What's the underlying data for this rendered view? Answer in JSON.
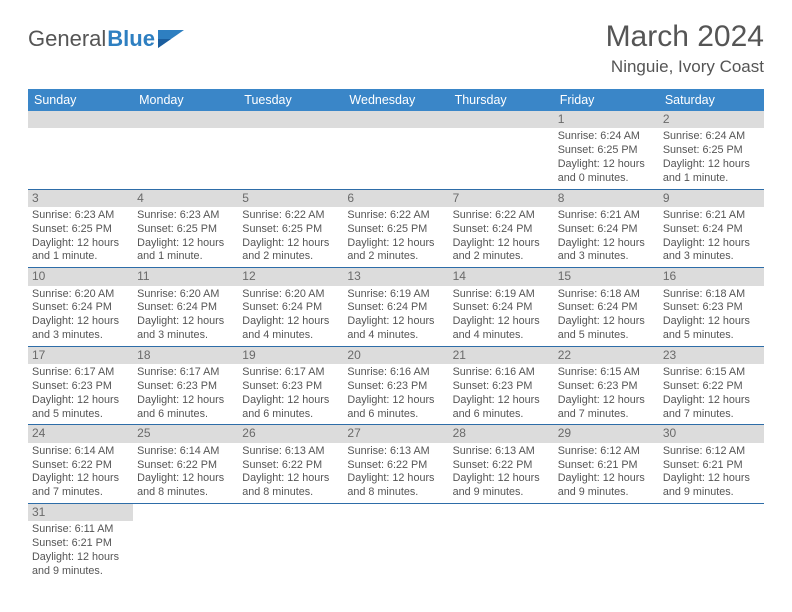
{
  "brand": {
    "part1": "General",
    "part2": "Blue"
  },
  "title": "March 2024",
  "location": "Ninguie, Ivory Coast",
  "colors": {
    "header_bg": "#3a86c8",
    "row_divider": "#2e6da8",
    "daynum_bg": "#dcdcdc",
    "text": "#555555",
    "brand_blue": "#2e7fc1"
  },
  "day_headers": [
    "Sunday",
    "Monday",
    "Tuesday",
    "Wednesday",
    "Thursday",
    "Friday",
    "Saturday"
  ],
  "weeks": [
    [
      {
        "n": "",
        "lines": []
      },
      {
        "n": "",
        "lines": []
      },
      {
        "n": "",
        "lines": []
      },
      {
        "n": "",
        "lines": []
      },
      {
        "n": "",
        "lines": []
      },
      {
        "n": "1",
        "lines": [
          "Sunrise: 6:24 AM",
          "Sunset: 6:25 PM",
          "Daylight: 12 hours and 0 minutes."
        ]
      },
      {
        "n": "2",
        "lines": [
          "Sunrise: 6:24 AM",
          "Sunset: 6:25 PM",
          "Daylight: 12 hours and 1 minute."
        ]
      }
    ],
    [
      {
        "n": "3",
        "lines": [
          "Sunrise: 6:23 AM",
          "Sunset: 6:25 PM",
          "Daylight: 12 hours and 1 minute."
        ]
      },
      {
        "n": "4",
        "lines": [
          "Sunrise: 6:23 AM",
          "Sunset: 6:25 PM",
          "Daylight: 12 hours and 1 minute."
        ]
      },
      {
        "n": "5",
        "lines": [
          "Sunrise: 6:22 AM",
          "Sunset: 6:25 PM",
          "Daylight: 12 hours and 2 minutes."
        ]
      },
      {
        "n": "6",
        "lines": [
          "Sunrise: 6:22 AM",
          "Sunset: 6:25 PM",
          "Daylight: 12 hours and 2 minutes."
        ]
      },
      {
        "n": "7",
        "lines": [
          "Sunrise: 6:22 AM",
          "Sunset: 6:24 PM",
          "Daylight: 12 hours and 2 minutes."
        ]
      },
      {
        "n": "8",
        "lines": [
          "Sunrise: 6:21 AM",
          "Sunset: 6:24 PM",
          "Daylight: 12 hours and 3 minutes."
        ]
      },
      {
        "n": "9",
        "lines": [
          "Sunrise: 6:21 AM",
          "Sunset: 6:24 PM",
          "Daylight: 12 hours and 3 minutes."
        ]
      }
    ],
    [
      {
        "n": "10",
        "lines": [
          "Sunrise: 6:20 AM",
          "Sunset: 6:24 PM",
          "Daylight: 12 hours and 3 minutes."
        ]
      },
      {
        "n": "11",
        "lines": [
          "Sunrise: 6:20 AM",
          "Sunset: 6:24 PM",
          "Daylight: 12 hours and 3 minutes."
        ]
      },
      {
        "n": "12",
        "lines": [
          "Sunrise: 6:20 AM",
          "Sunset: 6:24 PM",
          "Daylight: 12 hours and 4 minutes."
        ]
      },
      {
        "n": "13",
        "lines": [
          "Sunrise: 6:19 AM",
          "Sunset: 6:24 PM",
          "Daylight: 12 hours and 4 minutes."
        ]
      },
      {
        "n": "14",
        "lines": [
          "Sunrise: 6:19 AM",
          "Sunset: 6:24 PM",
          "Daylight: 12 hours and 4 minutes."
        ]
      },
      {
        "n": "15",
        "lines": [
          "Sunrise: 6:18 AM",
          "Sunset: 6:24 PM",
          "Daylight: 12 hours and 5 minutes."
        ]
      },
      {
        "n": "16",
        "lines": [
          "Sunrise: 6:18 AM",
          "Sunset: 6:23 PM",
          "Daylight: 12 hours and 5 minutes."
        ]
      }
    ],
    [
      {
        "n": "17",
        "lines": [
          "Sunrise: 6:17 AM",
          "Sunset: 6:23 PM",
          "Daylight: 12 hours and 5 minutes."
        ]
      },
      {
        "n": "18",
        "lines": [
          "Sunrise: 6:17 AM",
          "Sunset: 6:23 PM",
          "Daylight: 12 hours and 6 minutes."
        ]
      },
      {
        "n": "19",
        "lines": [
          "Sunrise: 6:17 AM",
          "Sunset: 6:23 PM",
          "Daylight: 12 hours and 6 minutes."
        ]
      },
      {
        "n": "20",
        "lines": [
          "Sunrise: 6:16 AM",
          "Sunset: 6:23 PM",
          "Daylight: 12 hours and 6 minutes."
        ]
      },
      {
        "n": "21",
        "lines": [
          "Sunrise: 6:16 AM",
          "Sunset: 6:23 PM",
          "Daylight: 12 hours and 6 minutes."
        ]
      },
      {
        "n": "22",
        "lines": [
          "Sunrise: 6:15 AM",
          "Sunset: 6:23 PM",
          "Daylight: 12 hours and 7 minutes."
        ]
      },
      {
        "n": "23",
        "lines": [
          "Sunrise: 6:15 AM",
          "Sunset: 6:22 PM",
          "Daylight: 12 hours and 7 minutes."
        ]
      }
    ],
    [
      {
        "n": "24",
        "lines": [
          "Sunrise: 6:14 AM",
          "Sunset: 6:22 PM",
          "Daylight: 12 hours and 7 minutes."
        ]
      },
      {
        "n": "25",
        "lines": [
          "Sunrise: 6:14 AM",
          "Sunset: 6:22 PM",
          "Daylight: 12 hours and 8 minutes."
        ]
      },
      {
        "n": "26",
        "lines": [
          "Sunrise: 6:13 AM",
          "Sunset: 6:22 PM",
          "Daylight: 12 hours and 8 minutes."
        ]
      },
      {
        "n": "27",
        "lines": [
          "Sunrise: 6:13 AM",
          "Sunset: 6:22 PM",
          "Daylight: 12 hours and 8 minutes."
        ]
      },
      {
        "n": "28",
        "lines": [
          "Sunrise: 6:13 AM",
          "Sunset: 6:22 PM",
          "Daylight: 12 hours and 9 minutes."
        ]
      },
      {
        "n": "29",
        "lines": [
          "Sunrise: 6:12 AM",
          "Sunset: 6:21 PM",
          "Daylight: 12 hours and 9 minutes."
        ]
      },
      {
        "n": "30",
        "lines": [
          "Sunrise: 6:12 AM",
          "Sunset: 6:21 PM",
          "Daylight: 12 hours and 9 minutes."
        ]
      }
    ],
    [
      {
        "n": "31",
        "lines": [
          "Sunrise: 6:11 AM",
          "Sunset: 6:21 PM",
          "Daylight: 12 hours and 9 minutes."
        ]
      },
      {
        "n": "",
        "lines": []
      },
      {
        "n": "",
        "lines": []
      },
      {
        "n": "",
        "lines": []
      },
      {
        "n": "",
        "lines": []
      },
      {
        "n": "",
        "lines": []
      },
      {
        "n": "",
        "lines": []
      }
    ]
  ]
}
